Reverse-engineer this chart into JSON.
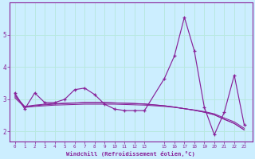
{
  "xlabel": "Windchill (Refroidissement éolien,°C)",
  "background_color": "#cceeff",
  "grid_color": "#aaddcc",
  "line_color": "#882299",
  "x_values": [
    0,
    1,
    2,
    3,
    4,
    5,
    6,
    7,
    8,
    9,
    10,
    11,
    12,
    13,
    15,
    16,
    17,
    18,
    19,
    20,
    21,
    22,
    23
  ],
  "y_main": [
    3.2,
    2.7,
    3.2,
    2.9,
    2.9,
    3.0,
    3.3,
    3.35,
    3.15,
    2.85,
    2.7,
    2.65,
    2.65,
    2.65,
    3.65,
    4.35,
    5.55,
    4.5,
    2.75,
    1.9,
    2.6,
    3.75,
    2.2
  ],
  "y_trend1": [
    3.05,
    2.75,
    2.78,
    2.8,
    2.82,
    2.83,
    2.84,
    2.85,
    2.85,
    2.85,
    2.85,
    2.84,
    2.83,
    2.82,
    2.78,
    2.75,
    2.71,
    2.67,
    2.62,
    2.55,
    2.42,
    2.3,
    2.1
  ],
  "y_trend2": [
    3.1,
    2.78,
    2.82,
    2.85,
    2.87,
    2.88,
    2.89,
    2.9,
    2.9,
    2.9,
    2.89,
    2.88,
    2.87,
    2.85,
    2.8,
    2.76,
    2.71,
    2.66,
    2.6,
    2.52,
    2.38,
    2.25,
    2.05
  ],
  "y_trend3": [
    3.15,
    2.76,
    2.8,
    2.83,
    2.85,
    2.87,
    2.88,
    2.9,
    2.9,
    2.9,
    2.89,
    2.88,
    2.87,
    2.86,
    2.8,
    2.76,
    2.71,
    2.66,
    2.6,
    2.52,
    2.38,
    2.25,
    2.05
  ],
  "ylim": [
    1.7,
    6.0
  ],
  "yticks": [
    2,
    3,
    4,
    5
  ],
  "xticks": [
    0,
    1,
    2,
    3,
    4,
    5,
    6,
    7,
    8,
    9,
    10,
    11,
    12,
    13,
    15,
    16,
    17,
    18,
    19,
    20,
    21,
    22,
    23
  ]
}
